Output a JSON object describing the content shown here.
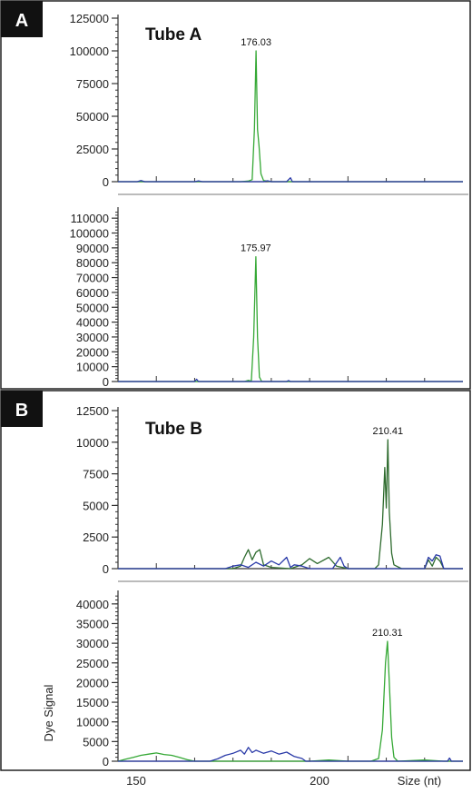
{
  "colors": {
    "green": "#35a835",
    "darkgreen": "#2e6b2e",
    "blue": "#2a3aa8",
    "axis": "#333333"
  },
  "panels": [
    {
      "label": "A",
      "title": "Tube A"
    },
    {
      "label": "B",
      "title": "Tube B"
    }
  ],
  "x_axis": {
    "label": "Size (nt)",
    "ticks": [
      150,
      200
    ]
  },
  "chart_data": [
    {
      "type": "line",
      "panel": "A",
      "title": "Tube A",
      "xlim": [
        140,
        230
      ],
      "ylim": [
        0,
        125000
      ],
      "yticks": [
        0,
        25000,
        50000,
        75000,
        100000,
        125000
      ],
      "ylabel": "",
      "annotations": [
        {
          "text": "176.03",
          "x": 176.03,
          "y": 100000
        }
      ],
      "series": [
        {
          "color_key": "green",
          "points": [
            [
              140,
              0
            ],
            [
              172,
              0
            ],
            [
              174,
              500
            ],
            [
              175,
              1500
            ],
            [
              175.6,
              40000
            ],
            [
              176.03,
              100000
            ],
            [
              176.4,
              40000
            ],
            [
              176.8,
              27000
            ],
            [
              177.3,
              6000
            ],
            [
              178,
              800
            ],
            [
              180,
              0
            ],
            [
              230,
              0
            ]
          ]
        },
        {
          "color_key": "blue",
          "points": [
            [
              140,
              0
            ],
            [
              145,
              0
            ],
            [
              146,
              800
            ],
            [
              147,
              0
            ],
            [
              160,
              0
            ],
            [
              161,
              600
            ],
            [
              162,
              0
            ],
            [
              178,
              0
            ],
            [
              179,
              700
            ],
            [
              180,
              0
            ],
            [
              184,
              0
            ],
            [
              185,
              3000
            ],
            [
              185.5,
              0
            ],
            [
              230,
              0
            ]
          ]
        }
      ]
    },
    {
      "type": "line",
      "panel": "A",
      "ylim": [
        0,
        115000
      ],
      "yticks": [
        0,
        10000,
        20000,
        30000,
        40000,
        50000,
        60000,
        70000,
        80000,
        90000,
        100000,
        110000
      ],
      "ylabel": "",
      "annotations": [
        {
          "text": "175.97",
          "x": 175.97,
          "y": 84000
        }
      ],
      "series": [
        {
          "color_key": "green",
          "points": [
            [
              140,
              0
            ],
            [
              173,
              0
            ],
            [
              174,
              800
            ],
            [
              174.8,
              300
            ],
            [
              175.4,
              30000
            ],
            [
              175.97,
              84000
            ],
            [
              176.4,
              30000
            ],
            [
              176.9,
              3000
            ],
            [
              177.5,
              0
            ],
            [
              230,
              0
            ]
          ]
        },
        {
          "color_key": "blue",
          "points": [
            [
              140,
              0
            ],
            [
              160,
              0
            ],
            [
              160.5,
              1500
            ],
            [
              161,
              0
            ],
            [
              184,
              0
            ],
            [
              184.5,
              700
            ],
            [
              185,
              0
            ],
            [
              230,
              0
            ]
          ]
        }
      ]
    },
    {
      "type": "line",
      "panel": "B",
      "title": "Tube B",
      "xlim": [
        140,
        230
      ],
      "ylim": [
        0,
        12500
      ],
      "yticks": [
        0,
        2500,
        5000,
        7500,
        10000,
        12500
      ],
      "ylabel": "",
      "annotations": [
        {
          "text": "210.41",
          "x": 210.41,
          "y": 10200
        }
      ],
      "series": [
        {
          "color_key": "darkgreen",
          "points": [
            [
              140,
              0
            ],
            [
              170,
              0
            ],
            [
              172,
              200
            ],
            [
              173,
              900
            ],
            [
              174,
              1500
            ],
            [
              175,
              700
            ],
            [
              176,
              1300
            ],
            [
              177,
              1500
            ],
            [
              178,
              300
            ],
            [
              180,
              100
            ],
            [
              185,
              0
            ],
            [
              188,
              300
            ],
            [
              190,
              800
            ],
            [
              192,
              400
            ],
            [
              195,
              900
            ],
            [
              197,
              200
            ],
            [
              200,
              0
            ],
            [
              207,
              0
            ],
            [
              208,
              300
            ],
            [
              209,
              3500
            ],
            [
              209.6,
              8000
            ],
            [
              210,
              4800
            ],
            [
              210.41,
              10200
            ],
            [
              210.8,
              4500
            ],
            [
              211.4,
              1200
            ],
            [
              212,
              300
            ],
            [
              214,
              0
            ],
            [
              220,
              0
            ],
            [
              221,
              700
            ],
            [
              222,
              200
            ],
            [
              223,
              900
            ],
            [
              224,
              600
            ],
            [
              225,
              0
            ],
            [
              230,
              0
            ]
          ]
        },
        {
          "color_key": "blue",
          "points": [
            [
              140,
              0
            ],
            [
              168,
              0
            ],
            [
              170,
              200
            ],
            [
              172,
              300
            ],
            [
              174,
              100
            ],
            [
              176,
              500
            ],
            [
              178,
              200
            ],
            [
              180,
              600
            ],
            [
              182,
              300
            ],
            [
              184,
              900
            ],
            [
              185,
              100
            ],
            [
              186,
              300
            ],
            [
              188,
              200
            ],
            [
              190,
              0
            ],
            [
              196,
              0
            ],
            [
              198,
              900
            ],
            [
              199,
              200
            ],
            [
              200,
              0
            ],
            [
              220,
              0
            ],
            [
              221,
              900
            ],
            [
              222,
              600
            ],
            [
              223,
              1100
            ],
            [
              224,
              1000
            ],
            [
              225,
              0
            ],
            [
              230,
              0
            ]
          ]
        }
      ]
    },
    {
      "type": "line",
      "panel": "B",
      "xlim": [
        140,
        230
      ],
      "ylim": [
        0,
        42500
      ],
      "yticks": [
        0,
        5000,
        10000,
        15000,
        20000,
        25000,
        30000,
        35000,
        40000
      ],
      "ylabel": "Dye Signal",
      "annotations": [
        {
          "text": "210.31",
          "x": 210.31,
          "y": 30500
        }
      ],
      "series": [
        {
          "color_key": "green",
          "points": [
            [
              140,
              0
            ],
            [
              142,
              500
            ],
            [
              144,
              1000
            ],
            [
              146,
              1500
            ],
            [
              148,
              1800
            ],
            [
              150,
              2100
            ],
            [
              152,
              1700
            ],
            [
              154,
              1500
            ],
            [
              156,
              1000
            ],
            [
              158,
              400
            ],
            [
              160,
              0
            ],
            [
              180,
              0
            ],
            [
              190,
              0
            ],
            [
              195,
              300
            ],
            [
              200,
              0
            ],
            [
              206,
              0
            ],
            [
              208,
              700
            ],
            [
              209,
              8000
            ],
            [
              209.8,
              25000
            ],
            [
              210.31,
              30500
            ],
            [
              210.8,
              20000
            ],
            [
              211.4,
              6000
            ],
            [
              212,
              1000
            ],
            [
              213,
              0
            ],
            [
              220,
              300
            ],
            [
              225,
              0
            ],
            [
              230,
              0
            ]
          ]
        },
        {
          "color_key": "blue",
          "points": [
            [
              140,
              0
            ],
            [
              164,
              0
            ],
            [
              166,
              600
            ],
            [
              168,
              1500
            ],
            [
              170,
              2000
            ],
            [
              172,
              2800
            ],
            [
              173,
              1800
            ],
            [
              174,
              3500
            ],
            [
              175,
              2200
            ],
            [
              176,
              2800
            ],
            [
              178,
              2000
            ],
            [
              180,
              2600
            ],
            [
              182,
              1800
            ],
            [
              184,
              2300
            ],
            [
              186,
              1200
            ],
            [
              188,
              700
            ],
            [
              189,
              0
            ],
            [
              226,
              0
            ],
            [
              226.5,
              800
            ],
            [
              227,
              0
            ],
            [
              230,
              0
            ]
          ]
        }
      ]
    }
  ]
}
